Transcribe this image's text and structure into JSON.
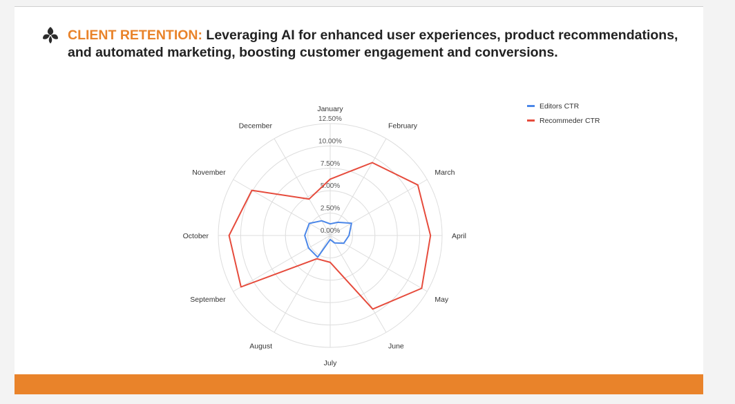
{
  "colors": {
    "accent": "#e9832a",
    "footer": "#e9832a",
    "editors": "#4a86e8",
    "recommender": "#e64b3c",
    "grid": "#dddddd"
  },
  "header": {
    "label": "CLIENT RETENTION:",
    "text": " Leveraging AI for enhanced user experiences, product recommendations, and automated marketing, boosting customer engagement and conversions."
  },
  "chart_data": {
    "type": "radar",
    "title": "",
    "categories": [
      "January",
      "February",
      "March",
      "April",
      "May",
      "June",
      "July",
      "August",
      "September",
      "October",
      "November",
      "December"
    ],
    "radial_ticks": [
      "0.00%",
      "2.50%",
      "5.00%",
      "7.50%",
      "10.00%",
      "12.50%"
    ],
    "r_range": [
      0,
      12.5
    ],
    "series": [
      {
        "name": "Editors CTR",
        "color": "#4a86e8",
        "values": [
          1.3,
          1.7,
          2.75,
          2.1,
          1.75,
          0.95,
          0.45,
          2.8,
          2.8,
          2.85,
          2.7,
          1.9
        ]
      },
      {
        "name": "Recommeder CTR",
        "color": "#e64b3c",
        "values": [
          6.3,
          9.4,
          11.3,
          11.2,
          11.8,
          9.5,
          3.0,
          3.0,
          11.5,
          11.3,
          10.1,
          4.7
        ]
      }
    ],
    "legend_position": "top-right"
  }
}
